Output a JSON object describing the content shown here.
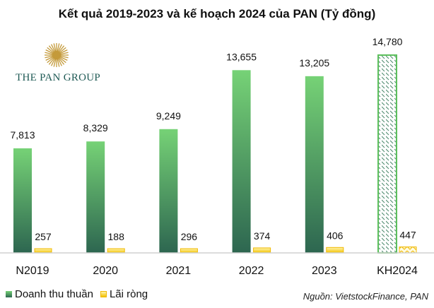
{
  "chart_data": {
    "type": "bar",
    "title": "Kết quả 2019-2023 và kế hoạch 2024 của PAN (Tỷ đồng)",
    "categories": [
      "N2019",
      "2020",
      "2021",
      "2022",
      "2023",
      "KH2024"
    ],
    "series": [
      {
        "name": "Doanh thu thuần",
        "values": [
          7813,
          8329,
          9249,
          13655,
          13205,
          14780
        ],
        "labels": [
          "7,813",
          "8,329",
          "9,249",
          "13,655",
          "13,205",
          "14,780"
        ],
        "color": "#5cbf5c"
      },
      {
        "name": "Lãi ròng",
        "values": [
          257,
          188,
          296,
          374,
          406,
          447
        ],
        "labels": [
          "257",
          "188",
          "296",
          "374",
          "406",
          "447"
        ],
        "color": "#f5c400"
      }
    ],
    "planned_category": "KH2024",
    "ylim": [
      0,
      14780
    ],
    "grid": false,
    "legend": "bottom-left",
    "source": "Nguồn: VietstockFinance, PAN",
    "logo_text": "THE PAN GROUP"
  }
}
